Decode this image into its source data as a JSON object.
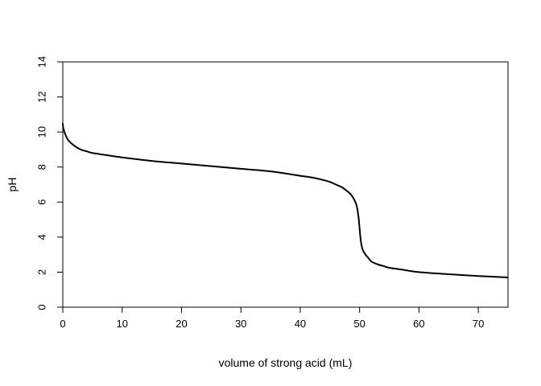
{
  "chart_data": {
    "type": "line",
    "xlabel": "volume of strong acid (mL)",
    "ylabel": "pH",
    "xlim": [
      0,
      75
    ],
    "ylim": [
      0,
      14
    ],
    "x_ticks": [
      0,
      10,
      20,
      30,
      40,
      50,
      60,
      70
    ],
    "y_ticks": [
      0,
      2,
      4,
      6,
      8,
      10,
      12,
      14
    ],
    "grid": false,
    "series": [
      {
        "color": "#000000",
        "x": [
          0,
          0.1,
          0.5,
          1,
          2,
          3,
          4,
          5,
          7,
          10,
          15,
          20,
          25,
          30,
          35,
          40,
          42,
          44,
          45,
          46,
          47,
          48,
          48.5,
          49,
          49.5,
          49.8,
          50,
          50.2,
          50.5,
          51,
          51.5,
          52,
          53,
          54,
          55,
          57,
          60,
          65,
          70,
          75
        ],
        "y": [
          10.5,
          10.2,
          9.8,
          9.5,
          9.2,
          9.0,
          8.9,
          8.8,
          8.7,
          8.55,
          8.35,
          8.2,
          8.05,
          7.9,
          7.75,
          7.5,
          7.4,
          7.25,
          7.15,
          7.0,
          6.85,
          6.6,
          6.45,
          6.2,
          5.8,
          5.2,
          4.5,
          3.8,
          3.3,
          3.0,
          2.8,
          2.6,
          2.45,
          2.35,
          2.25,
          2.15,
          2.0,
          1.88,
          1.78,
          1.7
        ]
      }
    ]
  }
}
